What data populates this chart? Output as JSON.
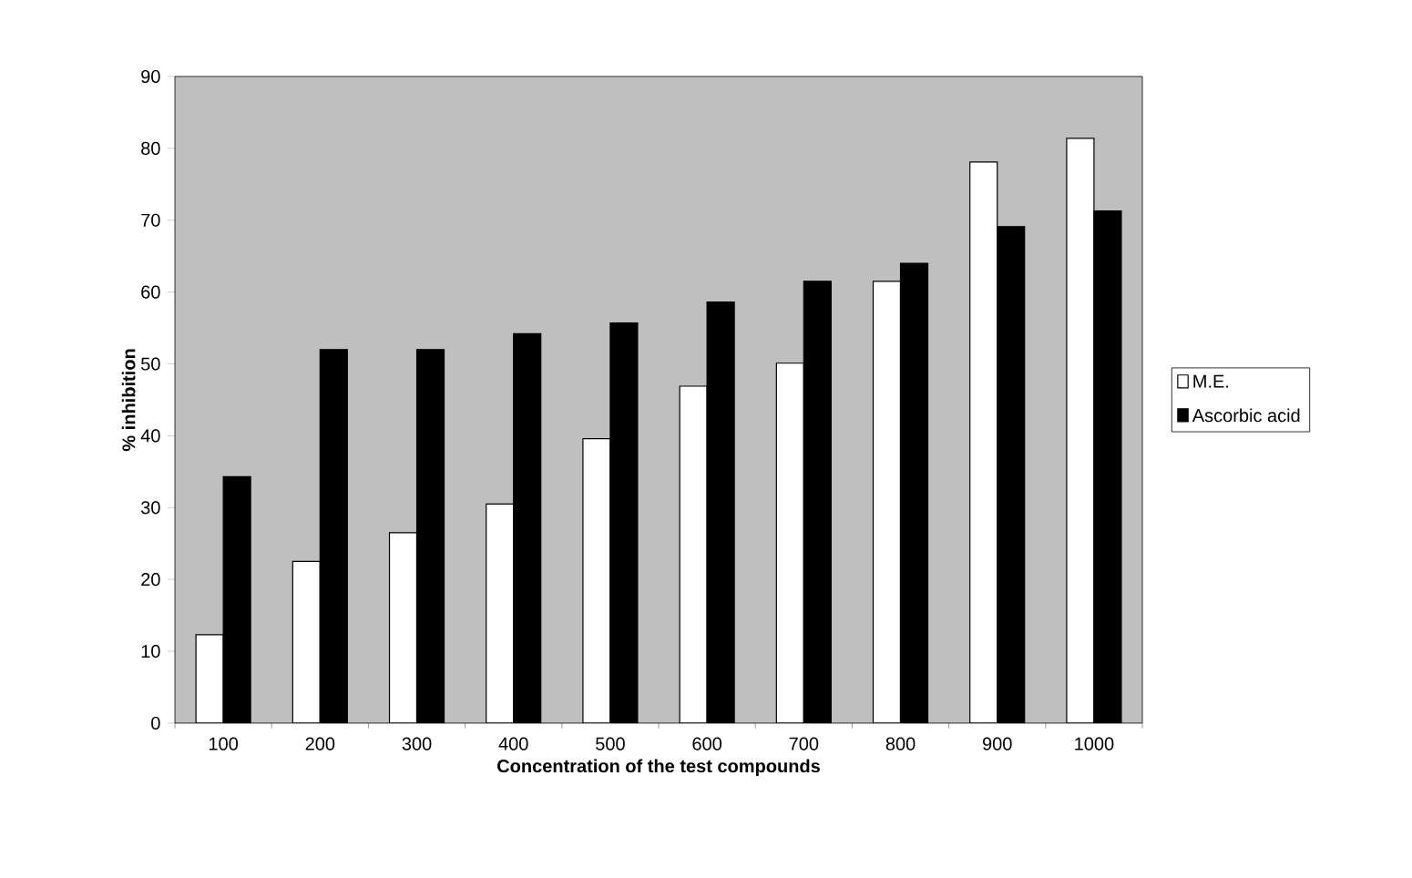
{
  "chart_data": {
    "type": "bar",
    "xlabel": "Concentration of the test compounds",
    "ylabel": "% inhibition",
    "categories": [
      "100",
      "200",
      "300",
      "400",
      "500",
      "600",
      "700",
      "800",
      "900",
      "1000"
    ],
    "series": [
      {
        "name": "M.E.",
        "color": "#ffffff",
        "values": [
          12.3,
          22.5,
          26.5,
          30.5,
          39.6,
          46.9,
          50.1,
          61.5,
          78.1,
          81.4
        ]
      },
      {
        "name": "Ascorbic acid",
        "color": "#000000",
        "values": [
          34.3,
          52,
          52,
          54.2,
          55.7,
          58.6,
          61.5,
          64,
          69.1,
          71.3
        ]
      }
    ],
    "ylim": [
      0,
      90
    ],
    "yticks": [
      0,
      10,
      20,
      30,
      40,
      50,
      60,
      70,
      80,
      90
    ],
    "legend": "right"
  }
}
